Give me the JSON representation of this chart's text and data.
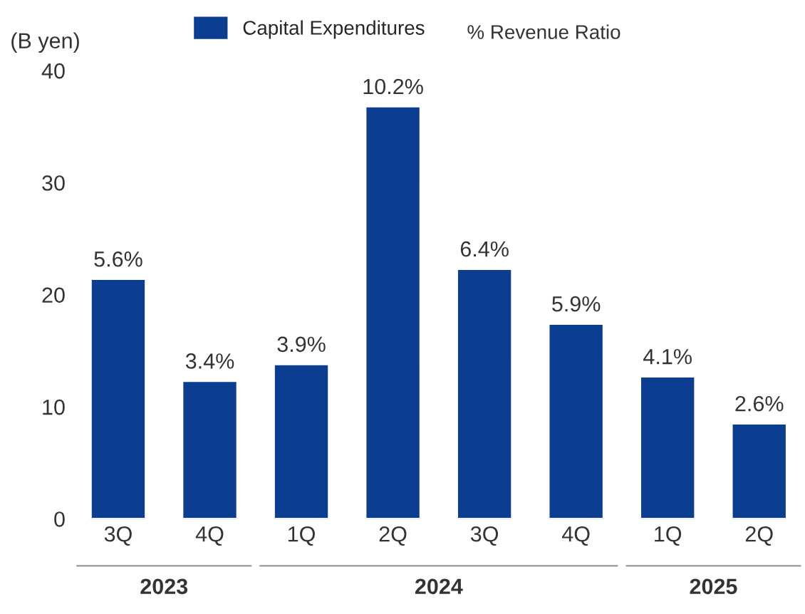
{
  "chart_data": {
    "type": "bar",
    "ylabel": "(B yen)",
    "categories": [
      "3Q",
      "4Q",
      "1Q",
      "2Q",
      "3Q",
      "4Q",
      "1Q",
      "2Q"
    ],
    "series": [
      {
        "name": "Capital Expenditures",
        "color": "#0b3d91",
        "values": [
          21.4,
          12.3,
          13.8,
          36.8,
          22.3,
          17.4,
          12.7,
          8.5
        ]
      }
    ],
    "ylim": [
      0,
      40
    ],
    "yticks": [
      0,
      10,
      20,
      30,
      40
    ],
    "grid": false,
    "legend": "top",
    "annotations": [
      "% Revenue Ratio",
      "2023",
      "2024",
      "2025",
      "5.6%",
      "3.4%",
      "3.9%",
      "10.2%",
      "6.4%",
      "5.9%",
      "4.1%",
      "2.6%"
    ]
  }
}
